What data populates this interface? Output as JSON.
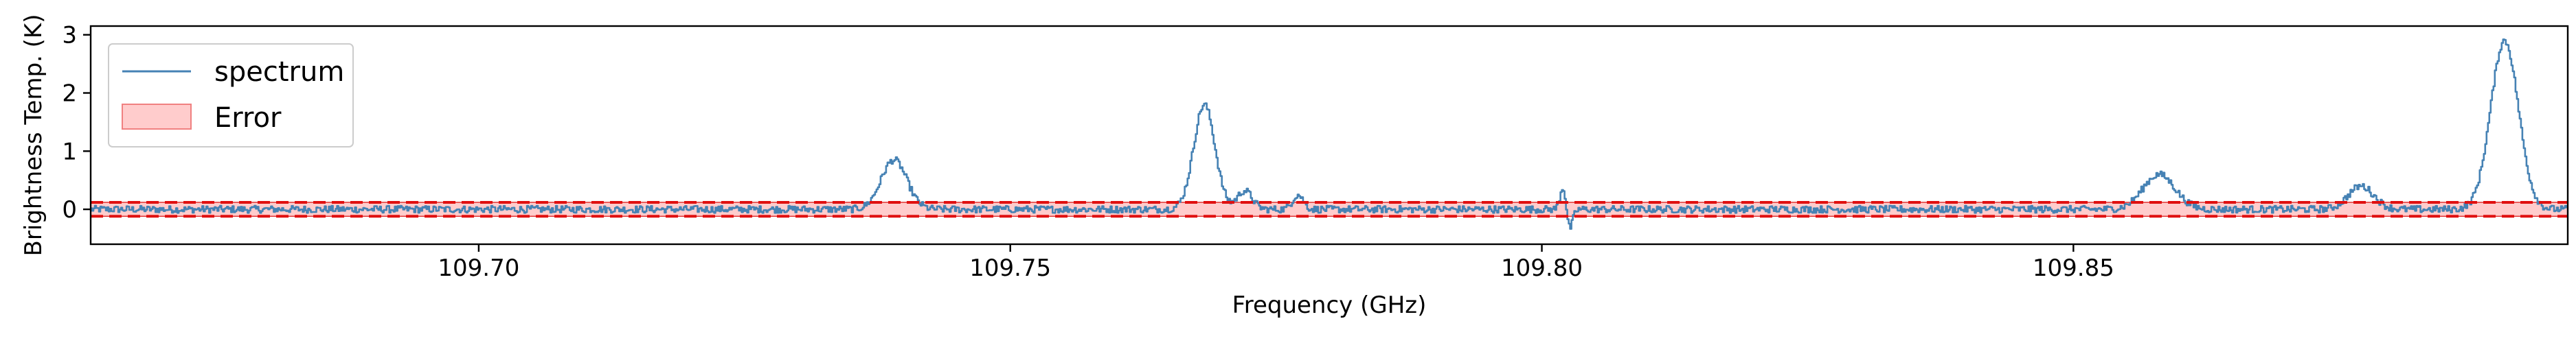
{
  "chart_data": {
    "type": "line",
    "title": "",
    "xlabel": "Frequency (GHz)",
    "ylabel": "Brightness Temp. (K)",
    "xlim": [
      109.6635,
      109.8965
    ],
    "ylim": [
      -0.6,
      3.15
    ],
    "xticks": [
      109.7,
      109.75,
      109.8,
      109.85
    ],
    "xtick_labels": [
      "109.70",
      "109.75",
      "109.80",
      "109.85"
    ],
    "yticks": [
      0,
      1,
      2,
      3
    ],
    "ytick_labels": [
      "0",
      "1",
      "2",
      "3"
    ],
    "grid": false,
    "legend_position": "top-left",
    "noise_level": 0.12,
    "series": [
      {
        "name": "spectrum",
        "color": "#4682b4",
        "x_range": [
          109.6635,
          109.8965
        ],
        "baseline_noise_rms": 0.07,
        "features": [
          {
            "center": 109.739,
            "peak": 0.85,
            "width": 0.0012
          },
          {
            "center": 109.7682,
            "peak": 1.8,
            "width": 0.001
          },
          {
            "center": 109.772,
            "peak": 0.32,
            "width": 0.0007
          },
          {
            "center": 109.777,
            "peak": 0.25,
            "width": 0.0005
          },
          {
            "center": 109.802,
            "peak": 0.45,
            "width": 0.0003
          },
          {
            "center": 109.8025,
            "peak": -0.4,
            "width": 0.0003
          },
          {
            "center": 109.858,
            "peak": 0.6,
            "width": 0.0015
          },
          {
            "center": 109.877,
            "peak": 0.4,
            "width": 0.0012
          },
          {
            "center": 109.8905,
            "peak": 2.9,
            "width": 0.0013
          }
        ]
      }
    ],
    "error_band": {
      "name": "Error",
      "lower": -0.12,
      "upper": 0.12,
      "fill_color": "#ffcccc",
      "edge_color": "#e03030",
      "line_color": "#e01010"
    }
  },
  "legend": {
    "spectrum_label": "spectrum",
    "error_label": "Error"
  }
}
